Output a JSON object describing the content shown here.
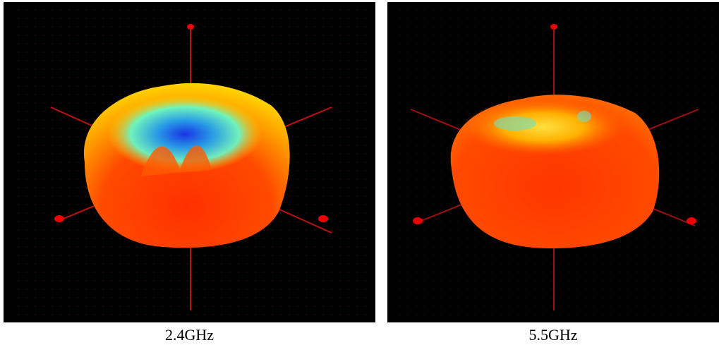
{
  "panels": [
    {
      "caption": "2.4GHz"
    },
    {
      "caption": "5.5GHz"
    }
  ]
}
